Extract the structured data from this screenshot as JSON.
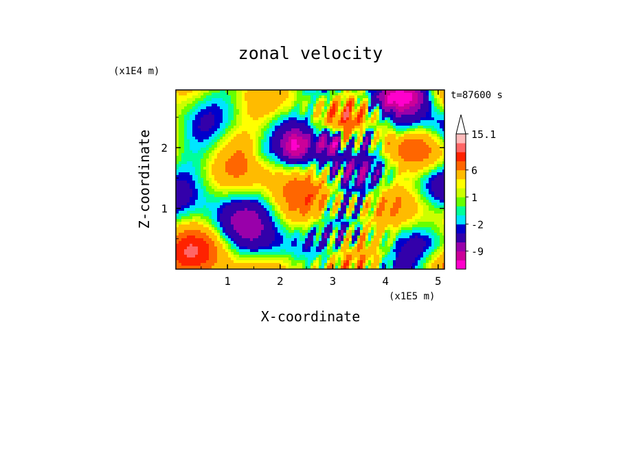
{
  "chart_data": {
    "type": "heatmap",
    "title": "zonal velocity",
    "xlabel": "X-coordinate",
    "ylabel": "Z-coordinate",
    "x_unit": "(x1E5 m)",
    "y_unit": "(x1E4 m)",
    "time_label": "t=87600 s",
    "xlim": [
      0.02,
      5.12
    ],
    "ylim": [
      0,
      2.95
    ],
    "x_ticks": [
      1,
      2,
      3,
      4,
      5
    ],
    "x_tick_labels": [
      "1",
      "2",
      "3",
      "4",
      "5"
    ],
    "y_ticks": [
      1,
      2
    ],
    "y_tick_labels": [
      "1",
      "2"
    ],
    "colorbar": {
      "levels": [
        -15,
        -12,
        -9,
        -6,
        -3,
        -2,
        -1,
        0,
        1,
        2,
        3,
        6,
        9,
        12,
        15.1
      ],
      "colors": [
        "#ff00cc",
        "#cc0099",
        "#9900aa",
        "#3300aa",
        "#0000cc",
        "#00e5ff",
        "#00ff99",
        "#66ff00",
        "#ccff00",
        "#ffff00",
        "#ffbb00",
        "#ff6600",
        "#ff2200",
        "#ff6666",
        "#ffbbbb"
      ],
      "labels": [
        "15.1",
        "6",
        "1",
        "-2",
        "-9"
      ],
      "label_values": [
        15.1,
        6,
        1,
        -2,
        -9
      ],
      "extend": "max"
    }
  }
}
